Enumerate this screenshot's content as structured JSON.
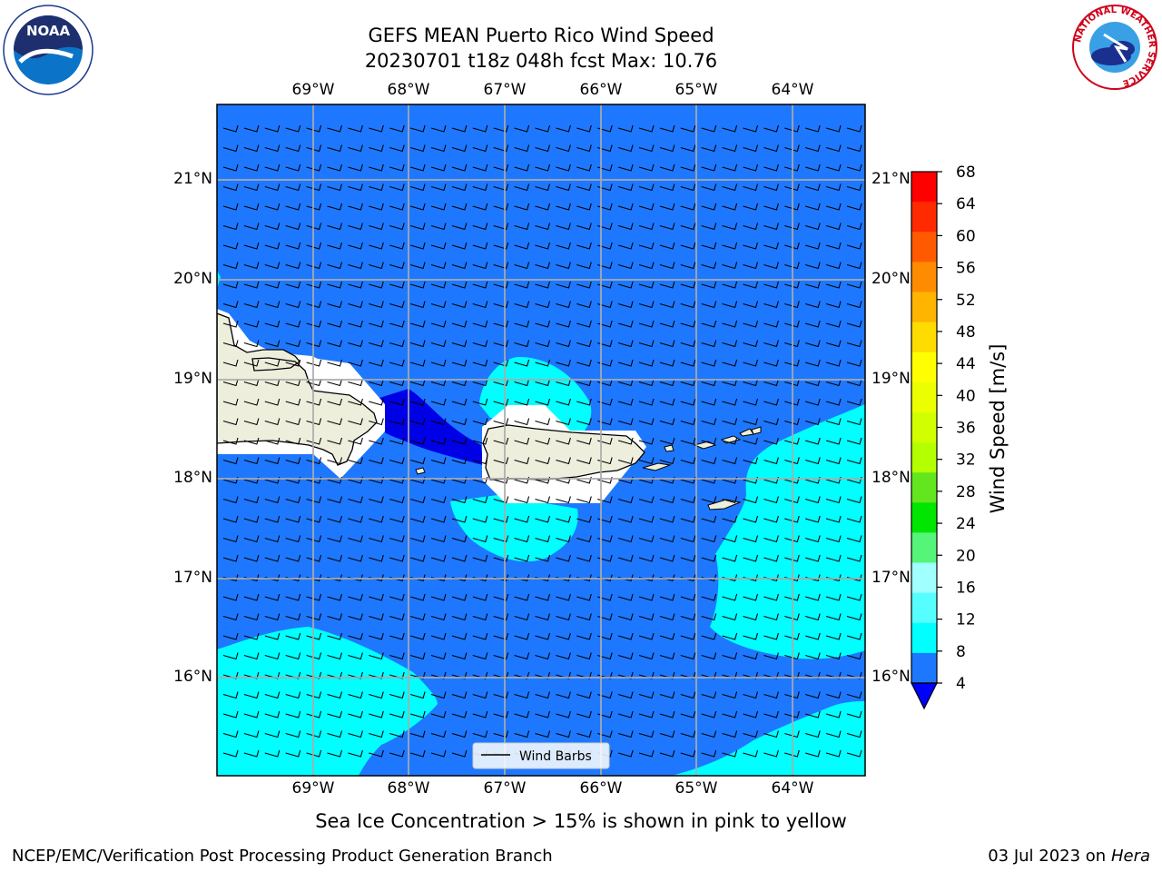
{
  "header": {
    "title_line1": "GEFS MEAN Puerto Rico Wind Speed",
    "title_line2": "20230701 t18z 048h fcst   Max: 10.76"
  },
  "logos": {
    "noaa_text": "NOAA",
    "nws_ring_text": "NATIONAL WEATHER SERVICE"
  },
  "map": {
    "lon_labels": [
      "69°W",
      "68°W",
      "67°W",
      "66°W",
      "65°W",
      "64°W"
    ],
    "lat_labels": [
      "21°N",
      "20°N",
      "19°N",
      "18°N",
      "17°N",
      "16°N"
    ],
    "legend_label": "Wind Barbs",
    "background_color": "#1e78ff"
  },
  "colorbar": {
    "label": "Wind Speed [m/s]",
    "ticks": [
      "68",
      "64",
      "60",
      "56",
      "52",
      "48",
      "44",
      "40",
      "36",
      "32",
      "28",
      "24",
      "20",
      "16",
      "12",
      "8",
      "4"
    ],
    "colors_top_to_bottom": [
      "#ff0000",
      "#ff2a00",
      "#ff5a00",
      "#ff8c00",
      "#ffb400",
      "#ffdc00",
      "#ffff00",
      "#ebff00",
      "#d2ff00",
      "#b4ff00",
      "#64e61e",
      "#00e600",
      "#55f57a",
      "#a0ffff",
      "#55ffff",
      "#00ffff",
      "#1e78ff"
    ],
    "extend_color": "#0000ff"
  },
  "footer": {
    "note": "Sea Ice Concentration > 15% is shown in pink to yellow",
    "left": "NCEP/EMC/Verification Post Processing Product Generation Branch",
    "right_prefix": "03 Jul 2023 on ",
    "right_host": "Hera"
  }
}
